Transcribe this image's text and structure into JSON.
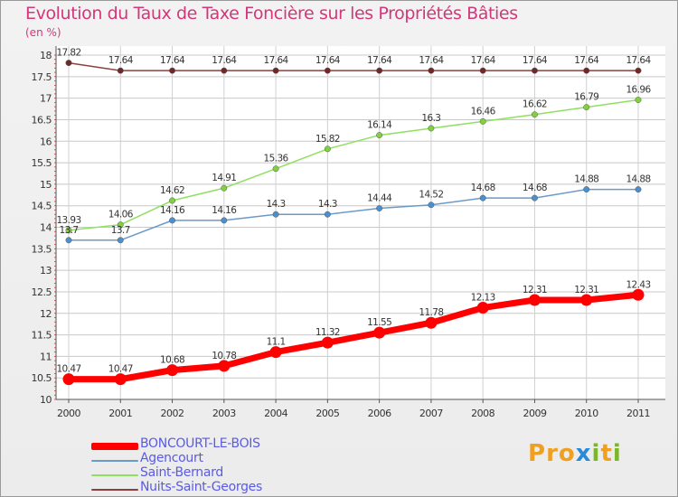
{
  "title": "Evolution du Taux de Taxe Foncière sur les Propriétés Bâties",
  "unit": "(en %)",
  "logo": "Proxiti",
  "chart_data": {
    "type": "line",
    "categories": [
      "2000",
      "2001",
      "2002",
      "2003",
      "2004",
      "2005",
      "2006",
      "2007",
      "2008",
      "2009",
      "2010",
      "2011"
    ],
    "ylim": [
      10,
      18
    ],
    "yticks": [
      "10",
      "10.5",
      "11",
      "11.5",
      "12",
      "12.5",
      "13",
      "13.5",
      "14",
      "14.5",
      "15",
      "15.5",
      "16",
      "16.5",
      "17",
      "17.5",
      "18"
    ],
    "grid": true,
    "legend_position": "bottom-left",
    "series": [
      {
        "name": "BONCOURT-LE-BOIS",
        "color": "#ff0000",
        "marker": "#ff0000",
        "values": [
          10.47,
          10.47,
          10.68,
          10.78,
          11.1,
          11.32,
          11.55,
          11.78,
          12.13,
          12.31,
          12.31,
          12.43
        ],
        "labels": [
          "10.47",
          "10.47",
          "10.68",
          "10.78",
          "11.1",
          "11.32",
          "11.55",
          "11.78",
          "12.13",
          "12.31",
          "12.31",
          "12.43"
        ]
      },
      {
        "name": "Agencourt",
        "color": "#6a9ac8",
        "marker": "#4a90d0",
        "values": [
          13.7,
          13.7,
          14.16,
          14.16,
          14.3,
          14.3,
          14.44,
          14.52,
          14.68,
          14.68,
          14.88,
          14.88
        ],
        "labels": [
          "13.7",
          "13.7",
          "14.16",
          "14.16",
          "14.3",
          "14.3",
          "14.44",
          "14.52",
          "14.68",
          "14.68",
          "14.88",
          "14.88"
        ]
      },
      {
        "name": "Saint-Bernard",
        "color": "#90e060",
        "marker": "#80d040",
        "values": [
          13.93,
          14.06,
          14.62,
          14.91,
          15.36,
          15.82,
          16.14,
          16.3,
          16.46,
          16.62,
          16.79,
          16.96
        ],
        "labels": [
          "13.93",
          "14.06",
          "14.62",
          "14.91",
          "15.36",
          "15.82",
          "16.14",
          "16.3",
          "16.46",
          "16.62",
          "16.79",
          "16.96"
        ]
      },
      {
        "name": "Nuits-Saint-Georges",
        "color": "#8a4040",
        "marker": "#702828",
        "values": [
          17.82,
          17.64,
          17.64,
          17.64,
          17.64,
          17.64,
          17.64,
          17.64,
          17.64,
          17.64,
          17.64,
          17.64
        ],
        "labels": [
          "17.82",
          "17.64",
          "17.64",
          "17.64",
          "17.64",
          "17.64",
          "17.64",
          "17.64",
          "17.64",
          "17.64",
          "17.64",
          "17.64"
        ]
      }
    ]
  }
}
